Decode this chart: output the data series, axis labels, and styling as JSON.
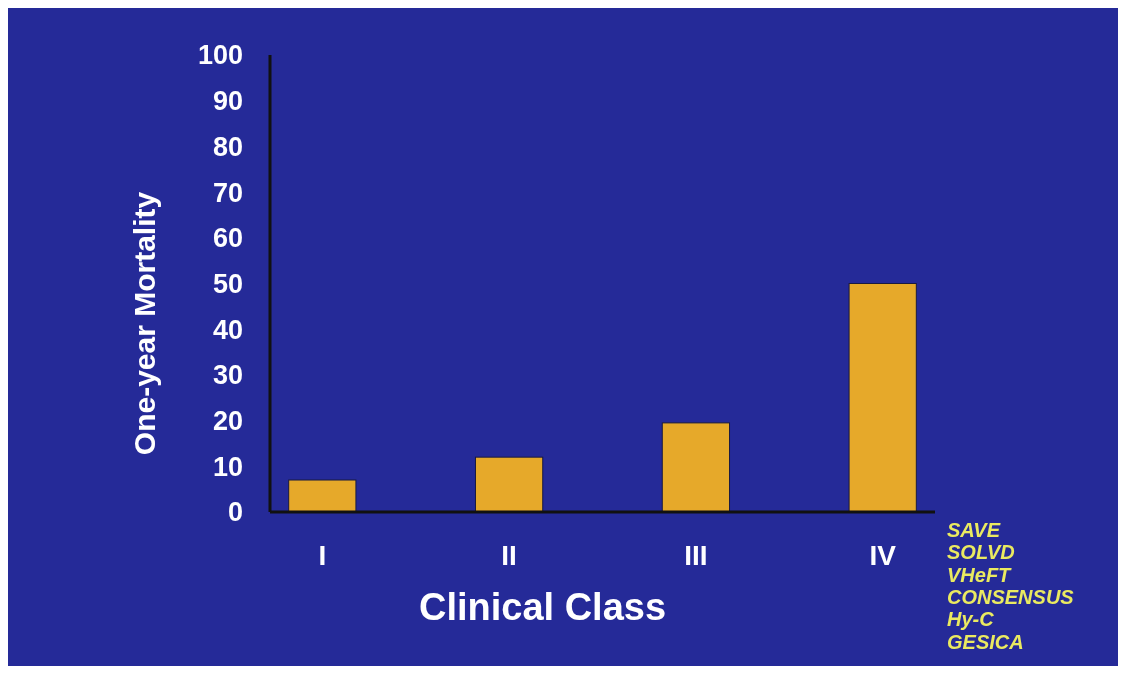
{
  "chart_data": {
    "type": "bar",
    "xlabel": "Clinical Class",
    "ylabel": "One-year  Mortality",
    "categories": [
      "I",
      "II",
      "III",
      "IV"
    ],
    "values": [
      7,
      12,
      19.5,
      50
    ],
    "color": "#e6a92a",
    "ylim": [
      0,
      100
    ],
    "yticks": [
      0,
      10,
      20,
      30,
      40,
      50,
      60,
      70,
      80,
      90,
      100
    ],
    "grid": false,
    "annotations": [
      "SAVE",
      "SOLVD",
      "VHeFT",
      "CONSENSUS",
      "Hy-C",
      "GESICA"
    ]
  }
}
